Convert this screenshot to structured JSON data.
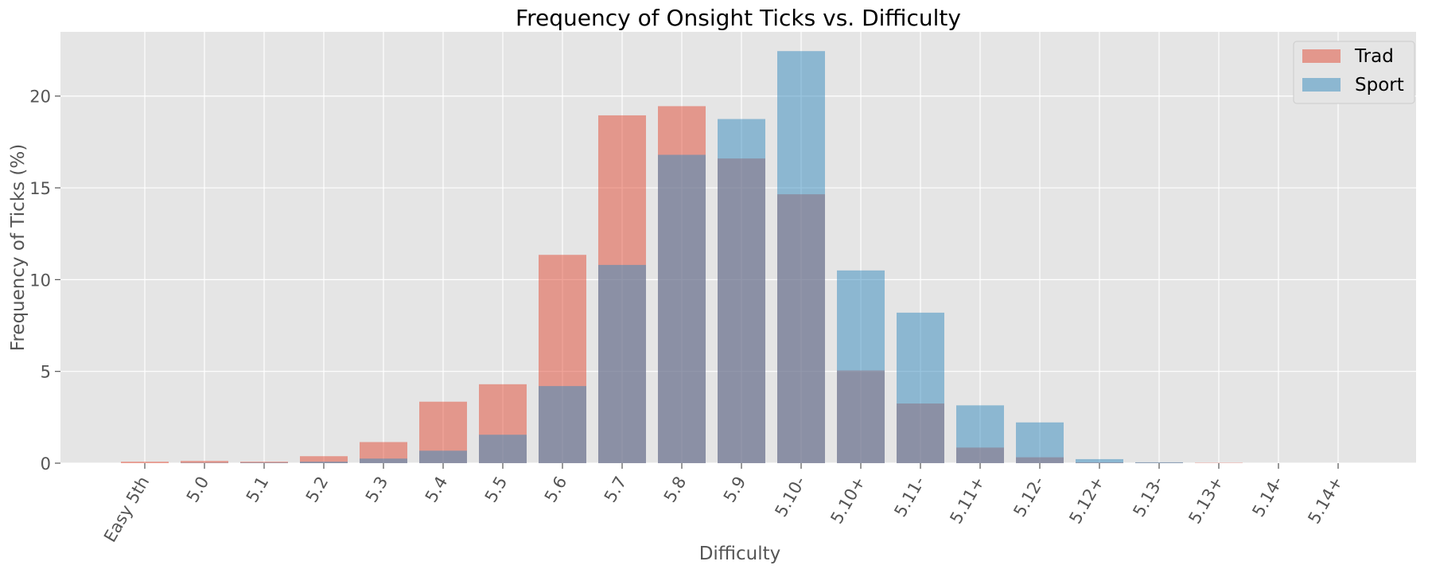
{
  "chart_data": {
    "type": "bar",
    "title": "Frequency of Onsight Ticks vs. Difficulty",
    "xlabel": "Difficulty",
    "ylabel": "Frequency of Ticks (%)",
    "ylim": [
      0,
      23.5
    ],
    "yticks": [
      0,
      5,
      10,
      15,
      20
    ],
    "grid": true,
    "legend_position": "top-right",
    "overlay": true,
    "categories": [
      "Easy 5th",
      "5.0",
      "5.1",
      "5.2",
      "5.3",
      "5.4",
      "5.5",
      "5.6",
      "5.7",
      "5.8",
      "5.9",
      "5.10-",
      "5.10+",
      "5.11-",
      "5.11+",
      "5.12-",
      "5.12+",
      "5.13-",
      "5.13+",
      "5.14-",
      "5.14+"
    ],
    "series": [
      {
        "name": "Trad",
        "color": "#E24A33",
        "values": [
          0.08,
          0.12,
          0.08,
          0.38,
          1.15,
          3.35,
          4.3,
          11.35,
          18.95,
          19.45,
          16.6,
          14.65,
          5.05,
          3.25,
          0.85,
          0.32,
          0.04,
          0.03,
          0.02,
          0.0,
          0.0
        ]
      },
      {
        "name": "Sport",
        "color": "#348ABD",
        "values": [
          0.0,
          0.02,
          0.03,
          0.08,
          0.25,
          0.68,
          1.55,
          4.2,
          10.8,
          16.8,
          18.75,
          22.45,
          10.5,
          8.2,
          3.15,
          2.22,
          0.22,
          0.05,
          0.0,
          0.0,
          0.0
        ]
      }
    ]
  }
}
